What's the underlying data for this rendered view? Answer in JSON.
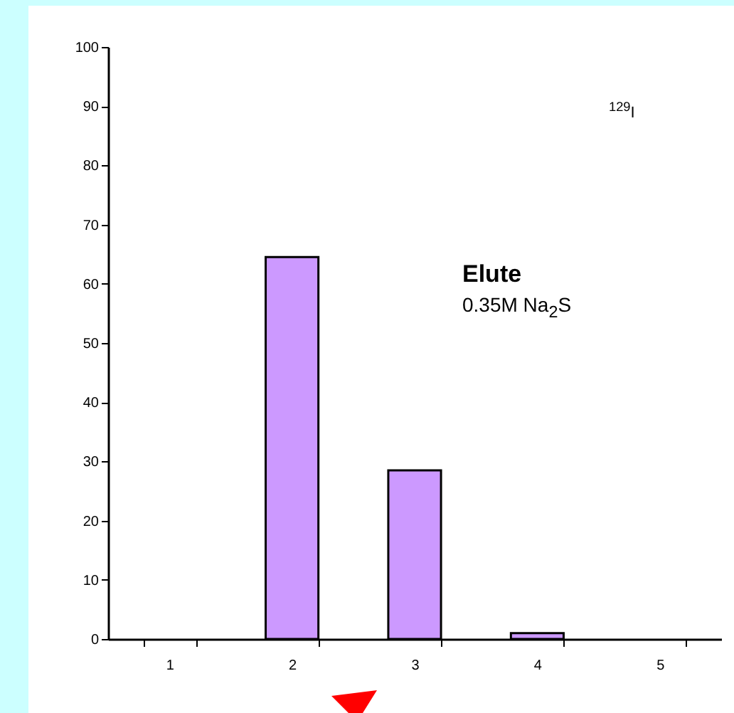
{
  "chart_data": {
    "type": "bar",
    "categories": [
      "1",
      "2",
      "3",
      "4",
      "5"
    ],
    "values": [
      0,
      64.5,
      28.5,
      1,
      0
    ],
    "color": "#cc99ff",
    "ylim": [
      0,
      100
    ],
    "yticks": [
      0,
      10,
      20,
      30,
      40,
      50,
      60,
      70,
      80,
      90,
      100
    ],
    "grid": false,
    "annotations": [
      "$^{129}$I",
      "Elute",
      "0.35M Na$_{2}$S"
    ]
  }
}
